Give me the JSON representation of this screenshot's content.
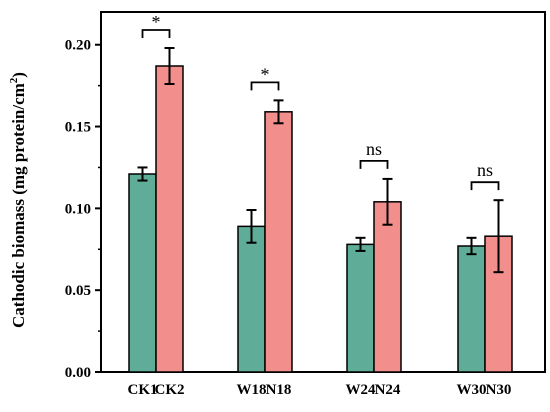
{
  "chart_data": {
    "type": "bar",
    "ylabel_main": "Cathodic biomass (mg protein/cm",
    "ylabel_sup": "2",
    "ylabel_end": ")",
    "ylim": [
      0,
      0.22
    ],
    "yticks": [
      "0.00",
      "0.05",
      "0.10",
      "0.15",
      "0.20"
    ],
    "ytick_values": [
      0,
      0.05,
      0.1,
      0.15,
      0.2
    ],
    "grid": false,
    "groups": [
      {
        "bars": [
          {
            "label": "CK1",
            "value": 0.121,
            "err": 0.004,
            "color": "#5fad98"
          },
          {
            "label": "CK2",
            "value": 0.187,
            "err": 0.011,
            "color": "#f28e8b"
          }
        ],
        "significance": "*"
      },
      {
        "bars": [
          {
            "label": "W18",
            "value": 0.089,
            "err": 0.01,
            "color": "#5fad98"
          },
          {
            "label": "N18",
            "value": 0.159,
            "err": 0.007,
            "color": "#f28e8b"
          }
        ],
        "significance": "*"
      },
      {
        "bars": [
          {
            "label": "W24",
            "value": 0.078,
            "err": 0.004,
            "color": "#5fad98"
          },
          {
            "label": "N24",
            "value": 0.104,
            "err": 0.014,
            "color": "#f28e8b"
          }
        ],
        "significance": "ns"
      },
      {
        "bars": [
          {
            "label": "W30",
            "value": 0.077,
            "err": 0.005,
            "color": "#5fad98"
          },
          {
            "label": "N30",
            "value": 0.083,
            "err": 0.022,
            "color": "#f28e8b"
          }
        ],
        "significance": "ns"
      }
    ]
  }
}
